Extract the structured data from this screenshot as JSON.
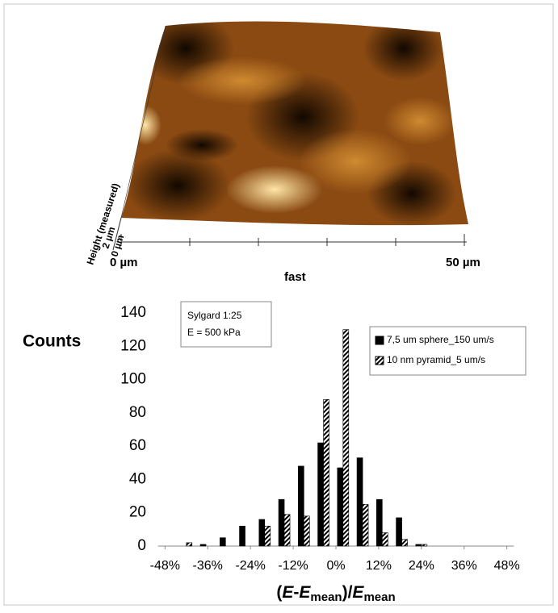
{
  "afm_image": {
    "x_start": "0 µm",
    "x_end": "50 µm",
    "x_title": "fast",
    "height_title": "Height (measured)",
    "height_top": "2 µm",
    "height_bottom": "0 µm"
  },
  "chart_data": {
    "type": "bar",
    "y_label": "Counts",
    "annotation": [
      "Sylgard 1:25",
      "E = 500 kPa"
    ],
    "x_label": [
      "(",
      "E",
      "-",
      "E",
      "mean",
      ")/",
      "E",
      "mean"
    ],
    "x": [
      -42,
      -36.5,
      -31,
      -25.5,
      -20,
      -14.5,
      -9,
      -3.5,
      2,
      7.5,
      13,
      18.5,
      24
    ],
    "series": [
      {
        "name": "7,5 um sphere_150 um/s",
        "color": "#000000",
        "fill": "solid",
        "values": [
          0,
          1,
          5,
          12,
          16,
          28,
          48,
          62,
          47,
          53,
          28,
          17,
          1
        ]
      },
      {
        "name": "10 nm pyramid_5 um/s",
        "color": "#000000",
        "fill": "hatch",
        "values": [
          2,
          0,
          0,
          0,
          12,
          19,
          18,
          88,
          130,
          25,
          8,
          4,
          1
        ]
      }
    ],
    "xlim": [
      -50,
      50
    ],
    "xticks": [
      {
        "value": -48,
        "label": "-48%"
      },
      {
        "value": -36,
        "label": "-36%"
      },
      {
        "value": -24,
        "label": "-24%"
      },
      {
        "value": -12,
        "label": "-12%"
      },
      {
        "value": 0,
        "label": "0%"
      },
      {
        "value": 12,
        "label": "12%"
      },
      {
        "value": 24,
        "label": "24%"
      },
      {
        "value": 36,
        "label": "36%"
      },
      {
        "value": 48,
        "label": "48%"
      }
    ],
    "ylim": [
      0,
      140
    ],
    "yticks": [
      0,
      20,
      40,
      60,
      80,
      100,
      120,
      140
    ],
    "legend": "upper right",
    "grid": false
  }
}
